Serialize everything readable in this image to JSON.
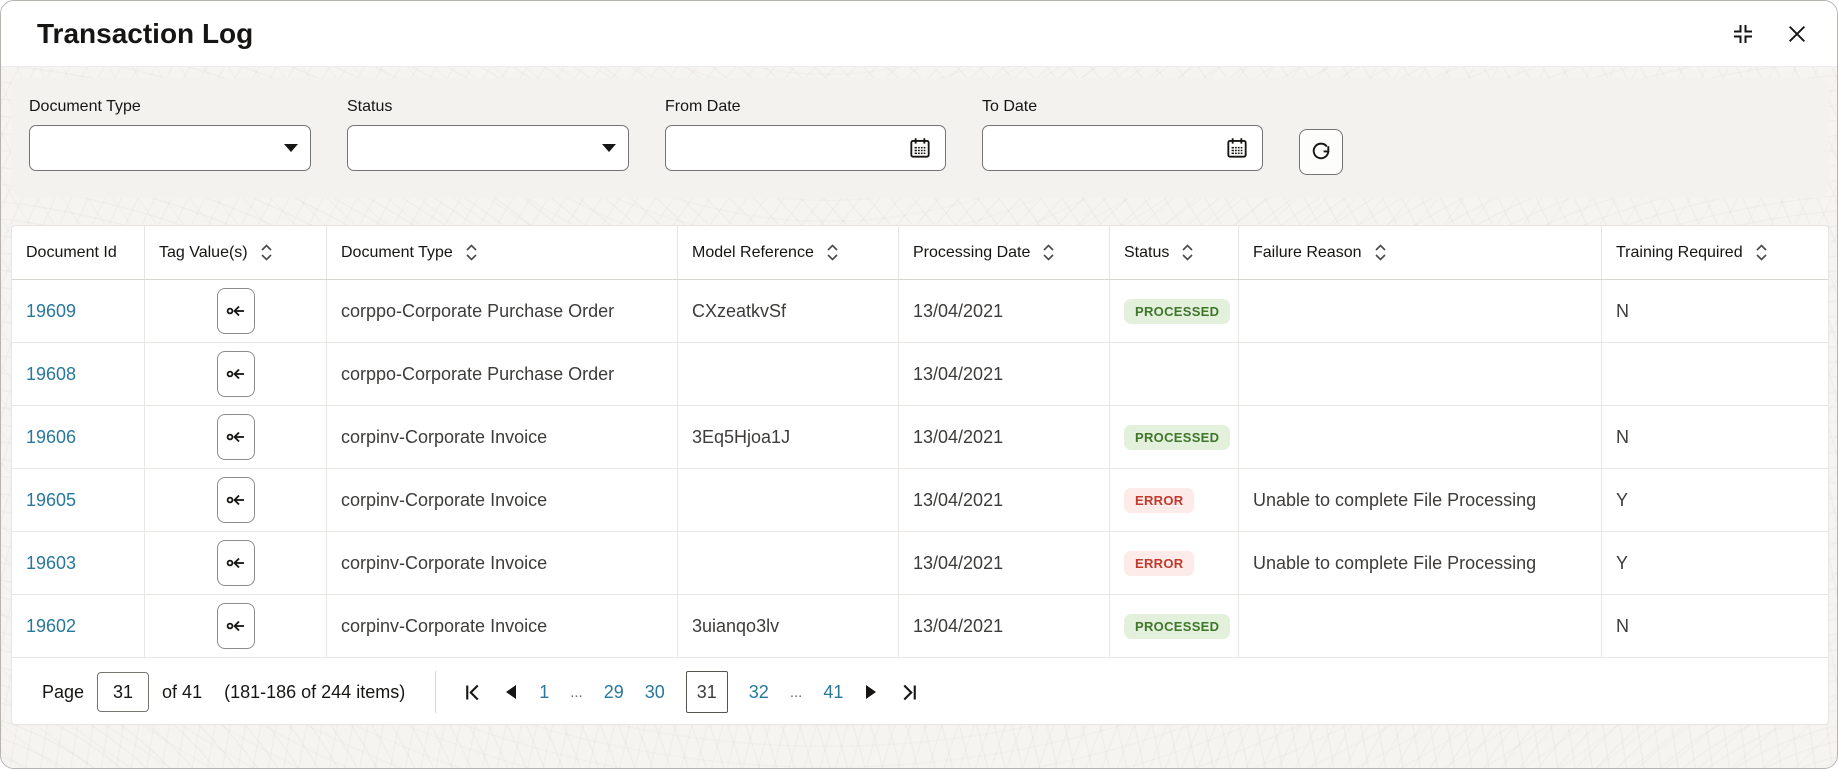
{
  "window": {
    "title": "Transaction Log",
    "restore_icon": "restore-window",
    "close_icon": "close-window"
  },
  "filters": {
    "document_type": {
      "label": "Document Type",
      "value": "",
      "type": "select"
    },
    "status": {
      "label": "Status",
      "value": "",
      "type": "select"
    },
    "from_date": {
      "label": "From Date",
      "value": "",
      "type": "date"
    },
    "to_date": {
      "label": "To Date",
      "value": "",
      "type": "date"
    },
    "refresh_icon": "refresh"
  },
  "table": {
    "columns": [
      {
        "label": "Document Id",
        "sortable": false
      },
      {
        "label": "Tag Value(s)",
        "sortable": true
      },
      {
        "label": "Document Type",
        "sortable": true
      },
      {
        "label": "Model Reference",
        "sortable": true
      },
      {
        "label": "Processing Date",
        "sortable": true
      },
      {
        "label": "Status",
        "sortable": true
      },
      {
        "label": "Failure Reason",
        "sortable": true
      },
      {
        "label": "Training Required",
        "sortable": true
      }
    ],
    "rows": [
      {
        "document_id": "19609",
        "document_type": "corppo-Corporate Purchase Order",
        "model_reference": "CXzeatkvSf",
        "processing_date": "13/04/2021",
        "status": "PROCESSED",
        "failure_reason": "",
        "training_required": "N"
      },
      {
        "document_id": "19608",
        "document_type": "corppo-Corporate Purchase Order",
        "model_reference": "",
        "processing_date": "13/04/2021",
        "status": "",
        "failure_reason": "",
        "training_required": ""
      },
      {
        "document_id": "19606",
        "document_type": "corpinv-Corporate Invoice",
        "model_reference": "3Eq5Hjoa1J",
        "processing_date": "13/04/2021",
        "status": "PROCESSED",
        "failure_reason": "",
        "training_required": "N"
      },
      {
        "document_id": "19605",
        "document_type": "corpinv-Corporate Invoice",
        "model_reference": "",
        "processing_date": "13/04/2021",
        "status": "ERROR",
        "failure_reason": "Unable to complete File Processing",
        "training_required": "Y"
      },
      {
        "document_id": "19603",
        "document_type": "corpinv-Corporate Invoice",
        "model_reference": "",
        "processing_date": "13/04/2021",
        "status": "ERROR",
        "failure_reason": "Unable to complete File Processing",
        "training_required": "Y"
      },
      {
        "document_id": "19602",
        "document_type": "corpinv-Corporate Invoice",
        "model_reference": "3uianqo3lv",
        "processing_date": "13/04/2021",
        "status": "PROCESSED",
        "failure_reason": "",
        "training_required": "N"
      }
    ]
  },
  "pagination": {
    "page_label": "Page",
    "current_page": "31",
    "of_label": "of 41",
    "items_label": "(181-186 of 244 items)",
    "pages": [
      {
        "label": "1",
        "type": "link"
      },
      {
        "label": "...",
        "type": "ellipsis"
      },
      {
        "label": "29",
        "type": "link"
      },
      {
        "label": "30",
        "type": "link"
      },
      {
        "label": "31",
        "type": "current"
      },
      {
        "label": "32",
        "type": "link"
      },
      {
        "label": "...",
        "type": "ellipsis"
      },
      {
        "label": "41",
        "type": "link"
      }
    ]
  },
  "colors": {
    "link": "#27789c",
    "processed_text": "#40752c",
    "processed_bg": "#e3f0db",
    "error_text": "#c03a2e",
    "error_bg": "#fcebe8",
    "text_dark": "#161513"
  }
}
